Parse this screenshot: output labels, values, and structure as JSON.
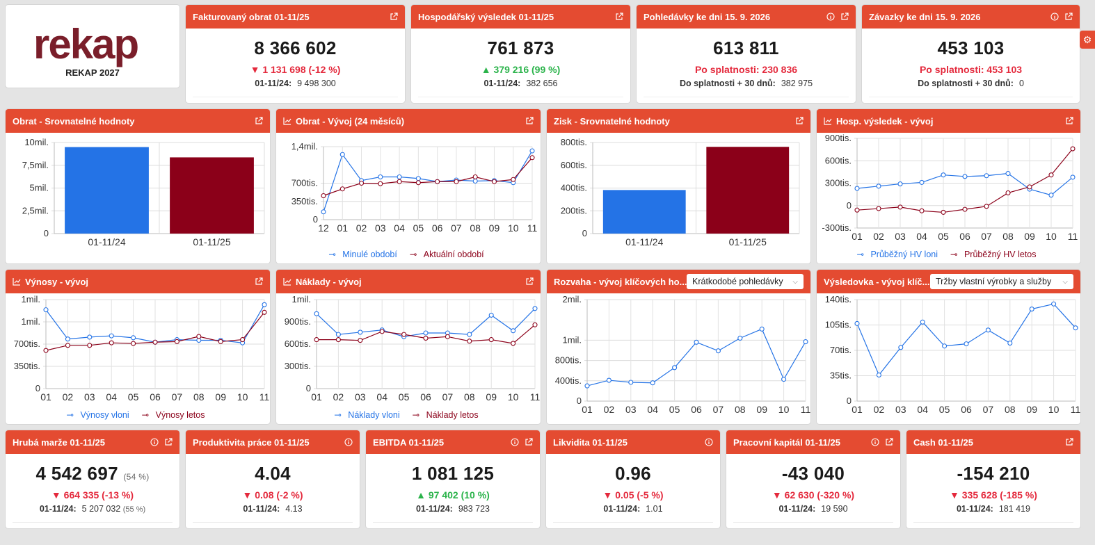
{
  "logo": {
    "word": "rekap",
    "subtitle": "REKAP 2027"
  },
  "kpi_top": [
    {
      "title": "Fakturovaný obrat 01-11/25",
      "value": "8 366 602",
      "delta": "1 131 698 (-12 %)",
      "delta_dir": "down",
      "prev_label": "01-11/24:",
      "prev_value": "9 498 300",
      "info": false
    },
    {
      "title": "Hospodářský výsledek 01-11/25",
      "value": "761 873",
      "delta": "379 216 (99 %)",
      "delta_dir": "up",
      "prev_label": "01-11/24:",
      "prev_value": "382 656",
      "info": false
    },
    {
      "title": "Pohledávky ke dni 15. 9. 2026",
      "value": "613 811",
      "due": "Po splatnosti: 230 836",
      "prev_label": "Do splatnosti + 30 dnů:",
      "prev_value": "382 975",
      "info": true
    },
    {
      "title": "Závazky ke dni 15. 9. 2026",
      "value": "453 103",
      "due": "Po splatnosti: 453 103",
      "prev_label": "Do splatnosti + 30 dnů:",
      "prev_value": "0",
      "info": true
    }
  ],
  "charts": {
    "c1": {
      "title": "Obrat - Srovnatelné hodnoty"
    },
    "c2": {
      "title": "Obrat - Vývoj (24 měsíců)",
      "legend": [
        "Minulé období",
        "Aktuální období"
      ]
    },
    "c3": {
      "title": "Zisk - Srovnatelné hodnoty"
    },
    "c4": {
      "title": "Hosp. výsledek - vývoj",
      "legend": [
        "Průběžný HV loni",
        "Průběžný HV letos"
      ]
    },
    "c5": {
      "title": "Výnosy - vývoj",
      "legend": [
        "Výnosy vloni",
        "Výnosy letos"
      ]
    },
    "c6": {
      "title": "Náklady - vývoj",
      "legend": [
        "Náklady vloni",
        "Náklady letos"
      ]
    },
    "c7": {
      "title": "Rozvaha - vývoj klíčových ho...",
      "select": "Krátkodobé pohledávky"
    },
    "c8": {
      "title": "Výsledovka - vývoj klíč...",
      "select": "Tržby vlastní výrobky a služby"
    }
  },
  "colors": {
    "accent": "#e44b31",
    "blue": "#2473e6",
    "red": "#8b0019",
    "neg": "#e4293c",
    "pos": "#2ab34a"
  },
  "chart_data": [
    {
      "type": "bar",
      "categories": [
        "01-11/24",
        "01-11/25"
      ],
      "values": [
        9498300,
        8366602
      ],
      "ylim": [
        0,
        10000000
      ],
      "yticks": [
        0,
        2500000,
        5000000,
        7500000,
        10000000
      ],
      "ytick_labels": [
        "0",
        "2,5mil.",
        "5mil.",
        "7,5mil.",
        "10mil."
      ],
      "colors": [
        "#2473e6",
        "#8b0019"
      ]
    },
    {
      "type": "line",
      "x": [
        "12",
        "01",
        "02",
        "03",
        "04",
        "05",
        "06",
        "07",
        "08",
        "09",
        "10",
        "11"
      ],
      "series": [
        {
          "name": "Minulé období",
          "values": [
            150000,
            1250000,
            750000,
            820000,
            820000,
            790000,
            730000,
            760000,
            740000,
            750000,
            710000,
            1320000
          ],
          "color": "#2473e6"
        },
        {
          "name": "Aktuální období",
          "values": [
            460000,
            590000,
            700000,
            690000,
            730000,
            710000,
            730000,
            730000,
            820000,
            730000,
            770000,
            1190000
          ],
          "color": "#8b0019"
        }
      ],
      "ylim": [
        0,
        1400000
      ],
      "yticks": [
        0,
        350000,
        700000,
        1400000
      ],
      "ytick_labels": [
        "0",
        "350tis.",
        "700tis.",
        "1,4mil."
      ]
    },
    {
      "type": "bar",
      "categories": [
        "01-11/24",
        "01-11/25"
      ],
      "values": [
        382656,
        761873
      ],
      "ylim": [
        0,
        800000
      ],
      "yticks": [
        0,
        200000,
        400000,
        600000,
        800000
      ],
      "ytick_labels": [
        "0",
        "200tis.",
        "400tis.",
        "600tis.",
        "800tis."
      ],
      "colors": [
        "#2473e6",
        "#8b0019"
      ]
    },
    {
      "type": "line",
      "x": [
        "01",
        "02",
        "03",
        "04",
        "05",
        "06",
        "07",
        "08",
        "09",
        "10",
        "11"
      ],
      "series": [
        {
          "name": "Průběžný HV loni",
          "values": [
            230000,
            260000,
            290000,
            310000,
            410000,
            390000,
            400000,
            430000,
            220000,
            140000,
            380000
          ],
          "color": "#2473e6"
        },
        {
          "name": "Průběžný HV letos",
          "values": [
            -60000,
            -40000,
            -20000,
            -70000,
            -90000,
            -50000,
            -10000,
            170000,
            250000,
            410000,
            760000
          ],
          "color": "#8b0019"
        }
      ],
      "ylim": [
        -300000,
        900000
      ],
      "yticks": [
        -300000,
        0,
        300000,
        600000,
        900000
      ],
      "ytick_labels": [
        "-300tis.",
        "0",
        "300tis.",
        "600tis.",
        "900tis."
      ]
    },
    {
      "type": "line",
      "x": [
        "01",
        "02",
        "03",
        "04",
        "05",
        "06",
        "07",
        "08",
        "09",
        "10",
        "11"
      ],
      "series": [
        {
          "name": "Výnosy vloni",
          "values": [
            1240000,
            780000,
            810000,
            830000,
            800000,
            730000,
            770000,
            760000,
            760000,
            720000,
            1320000
          ],
          "color": "#2473e6"
        },
        {
          "name": "Výnosy letos",
          "values": [
            600000,
            680000,
            680000,
            720000,
            710000,
            730000,
            740000,
            820000,
            740000,
            770000,
            1200000
          ],
          "color": "#8b0019"
        }
      ],
      "ylim": [
        0,
        1400000
      ],
      "yticks": [
        0,
        350000,
        700000,
        1050000,
        1400000
      ],
      "ytick_labels": [
        "0",
        "350tis.",
        "700tis.",
        "1mil.",
        "1mil."
      ]
    },
    {
      "type": "line",
      "x": [
        "01",
        "02",
        "03",
        "04",
        "05",
        "06",
        "07",
        "08",
        "09",
        "10",
        "11"
      ],
      "series": [
        {
          "name": "Náklady vloni",
          "values": [
            1010000,
            730000,
            760000,
            790000,
            700000,
            750000,
            750000,
            730000,
            990000,
            780000,
            1080000
          ],
          "color": "#2473e6"
        },
        {
          "name": "Náklady letos",
          "values": [
            660000,
            660000,
            650000,
            770000,
            730000,
            680000,
            700000,
            640000,
            660000,
            610000,
            860000
          ],
          "color": "#8b0019"
        }
      ],
      "ylim": [
        0,
        1200000
      ],
      "yticks": [
        0,
        300000,
        600000,
        900000,
        1200000
      ],
      "ytick_labels": [
        "0",
        "300tis.",
        "600tis.",
        "900tis.",
        "1mil."
      ]
    },
    {
      "type": "line",
      "x": [
        "01",
        "02",
        "03",
        "04",
        "05",
        "06",
        "07",
        "08",
        "09",
        "10",
        "11"
      ],
      "series": [
        {
          "values": [
            300000,
            410000,
            370000,
            360000,
            660000,
            1160000,
            990000,
            1240000,
            1420000,
            430000,
            1170000
          ],
          "color": "#2473e6"
        }
      ],
      "ylim": [
        0,
        2000000
      ],
      "yticks": [
        0,
        400000,
        800000,
        1200000,
        2000000
      ],
      "ytick_labels": [
        "0",
        "400tis.",
        "800tis.",
        "1mil.",
        "2mil."
      ]
    },
    {
      "type": "line",
      "x": [
        "01",
        "02",
        "03",
        "04",
        "05",
        "06",
        "07",
        "08",
        "09",
        "10",
        "11"
      ],
      "series": [
        {
          "values": [
            107000,
            36000,
            74000,
            109000,
            76000,
            79000,
            98000,
            80000,
            127000,
            134000,
            101000
          ],
          "color": "#2473e6"
        }
      ],
      "ylim": [
        0,
        140000
      ],
      "yticks": [
        0,
        35000,
        70000,
        105000,
        140000
      ],
      "ytick_labels": [
        "0",
        "35tis.",
        "70tis.",
        "105tis.",
        "140tis."
      ]
    }
  ],
  "kpi_bottom": [
    {
      "title": "Hrubá marže 01-11/25",
      "value": "4 542 697",
      "value_pct": "(54 %)",
      "delta": "664 335 (-13 %)",
      "delta_dir": "down",
      "prev_label": "01-11/24:",
      "prev_value": "5 207 032",
      "prev_pct": "(55 %)",
      "info": true,
      "link": true
    },
    {
      "title": "Produktivita práce 01-11/25",
      "value": "4.04",
      "delta": "0.08 (-2 %)",
      "delta_dir": "down",
      "prev_label": "01-11/24:",
      "prev_value": "4.13",
      "info": true,
      "link": false
    },
    {
      "title": "EBITDA 01-11/25",
      "value": "1 081 125",
      "delta": "97 402 (10 %)",
      "delta_dir": "up",
      "prev_label": "01-11/24:",
      "prev_value": "983 723",
      "info": true,
      "link": true
    },
    {
      "title": "Likvidita 01-11/25",
      "value": "0.96",
      "delta": "0.05 (-5 %)",
      "delta_dir": "down",
      "prev_label": "01-11/24:",
      "prev_value": "1.01",
      "info": true,
      "link": false
    },
    {
      "title": "Pracovní kapitál 01-11/25",
      "value": "-43 040",
      "delta": "62 630 (-320 %)",
      "delta_dir": "down",
      "prev_label": "01-11/24:",
      "prev_value": "19 590",
      "info": true,
      "link": true
    },
    {
      "title": "Cash 01-11/25",
      "value": "-154 210",
      "delta": "335 628 (-185 %)",
      "delta_dir": "down",
      "prev_label": "01-11/24:",
      "prev_value": "181 419",
      "info": false,
      "link": true
    }
  ]
}
